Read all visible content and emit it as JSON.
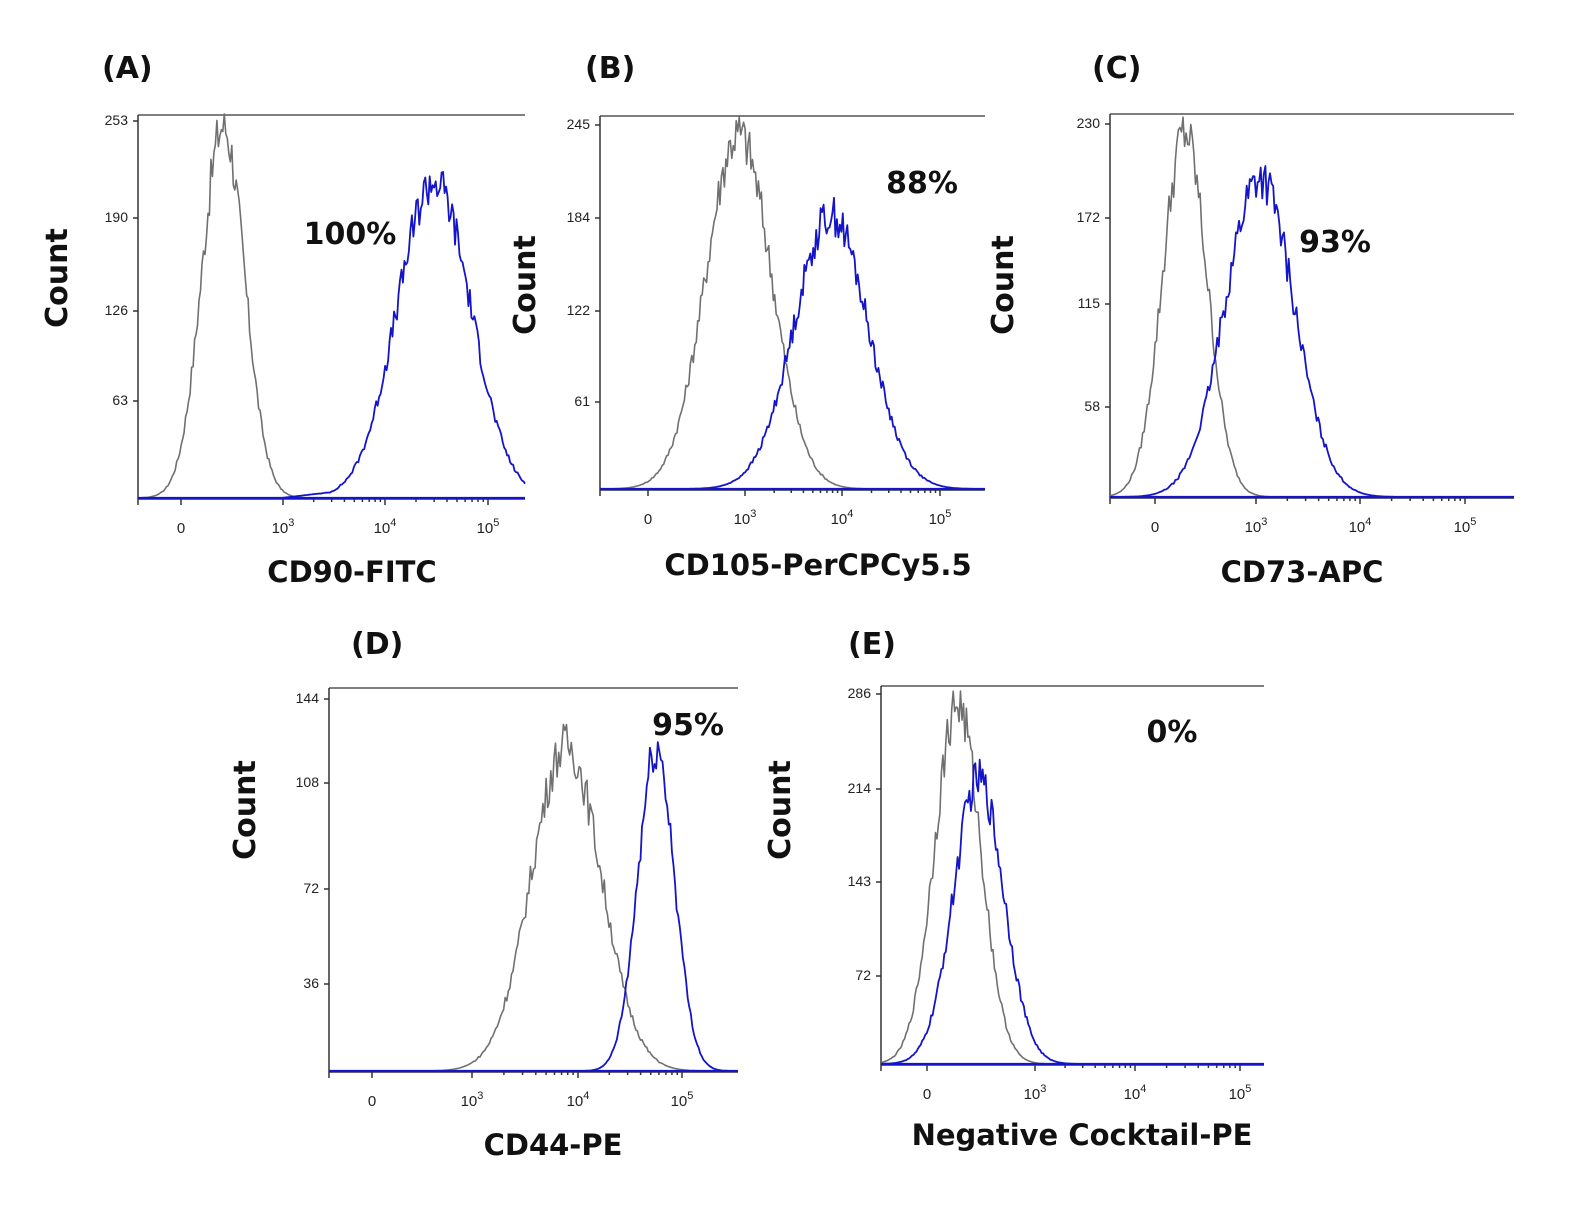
{
  "colors": {
    "control": "#707070",
    "sample": "#1414c8",
    "text": "#111111"
  },
  "chart_data": [
    {
      "type": "histogram",
      "panel": "(A)",
      "xlabel": "CD90-FITC",
      "ylabel": "Count",
      "yticks": [
        "63",
        "126",
        "190",
        "253"
      ],
      "ymax": 253,
      "xticks": [
        {
          "base": "0",
          "exp": ""
        },
        {
          "base": "10",
          "exp": "3"
        },
        {
          "base": "10",
          "exp": "4"
        },
        {
          "base": "10",
          "exp": "5"
        }
      ],
      "percent_label": "100%",
      "series": [
        {
          "name": "control",
          "color": "#707070",
          "peaks": [
            {
              "center": 0.22,
              "height": 253,
              "width": 0.055
            }
          ]
        },
        {
          "name": "stained",
          "color": "#1414c8",
          "peaks": [
            {
              "center": 0.765,
              "height": 215,
              "width": 0.095
            }
          ],
          "tail": {
            "from": 0.37,
            "height": 6
          }
        }
      ]
    },
    {
      "type": "histogram",
      "panel": "(B)",
      "xlabel": "CD105-PerCPCy5.5",
      "ylabel": "Count",
      "yticks": [
        "61",
        "122",
        "184",
        "245"
      ],
      "ymax": 245,
      "xticks": [
        {
          "base": "0",
          "exp": ""
        },
        {
          "base": "10",
          "exp": "3"
        },
        {
          "base": "10",
          "exp": "4"
        },
        {
          "base": "10",
          "exp": "5"
        }
      ],
      "percent_label": "88%",
      "series": [
        {
          "name": "control",
          "color": "#707070",
          "peaks": [
            {
              "center": 0.36,
              "height": 240,
              "width": 0.085
            }
          ]
        },
        {
          "name": "stained",
          "color": "#1414c8",
          "peaks": [
            {
              "center": 0.6,
              "height": 185,
              "width": 0.095
            }
          ]
        }
      ]
    },
    {
      "type": "histogram",
      "panel": "(C)",
      "xlabel": "CD73-APC",
      "ylabel": "Count",
      "yticks": [
        "58",
        "115",
        "172",
        "230"
      ],
      "ymax": 230,
      "xticks": [
        {
          "base": "0",
          "exp": ""
        },
        {
          "base": "10",
          "exp": "3"
        },
        {
          "base": "10",
          "exp": "4"
        },
        {
          "base": "10",
          "exp": "5"
        }
      ],
      "percent_label": "93%",
      "series": [
        {
          "name": "control",
          "color": "#707070",
          "peaks": [
            {
              "center": 0.185,
              "height": 225,
              "width": 0.055
            }
          ]
        },
        {
          "name": "stained",
          "color": "#1414c8",
          "peaks": [
            {
              "center": 0.37,
              "height": 198,
              "width": 0.085
            }
          ]
        }
      ]
    },
    {
      "type": "histogram",
      "panel": "(D)",
      "xlabel": "CD44-PE",
      "ylabel": "Count",
      "yticks": [
        "36",
        "72",
        "108",
        "144"
      ],
      "ymax": 144,
      "xticks": [
        {
          "base": "0",
          "exp": ""
        },
        {
          "base": "10",
          "exp": "3"
        },
        {
          "base": "10",
          "exp": "4"
        },
        {
          "base": "10",
          "exp": "5"
        }
      ],
      "percent_label": "95%",
      "series": [
        {
          "name": "control",
          "color": "#707070",
          "peaks": [
            {
              "center": 0.58,
              "height": 126,
              "width": 0.085
            }
          ]
        },
        {
          "name": "stained",
          "color": "#1414c8",
          "peaks": [
            {
              "center": 0.8,
              "height": 124,
              "width": 0.045
            }
          ]
        }
      ]
    },
    {
      "type": "histogram",
      "panel": "(E)",
      "xlabel": "Negative Cocktail-PE",
      "ylabel": "Count",
      "yticks": [
        "72",
        "143",
        "214",
        "286"
      ],
      "ymax": 286,
      "xticks": [
        {
          "base": "0",
          "exp": ""
        },
        {
          "base": "10",
          "exp": "3"
        },
        {
          "base": "10",
          "exp": "4"
        },
        {
          "base": "10",
          "exp": "5"
        }
      ],
      "percent_label": "0%",
      "series": [
        {
          "name": "control",
          "color": "#707070",
          "peaks": [
            {
              "center": 0.2,
              "height": 280,
              "width": 0.06
            }
          ]
        },
        {
          "name": "stained",
          "color": "#1414c8",
          "peaks": [
            {
              "center": 0.255,
              "height": 222,
              "width": 0.065
            }
          ]
        }
      ]
    }
  ]
}
